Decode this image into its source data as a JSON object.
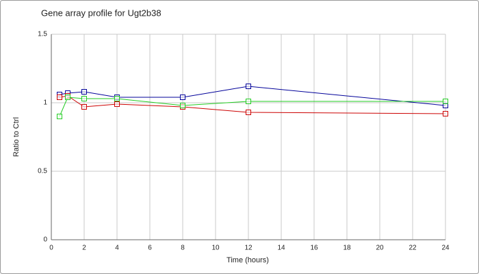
{
  "chart_data": {
    "type": "line",
    "title": "Gene array profile for Ugt2b38",
    "x_label": "Time (hours)",
    "y_label": "Ratio to Ctrl",
    "x": [
      0.5,
      1,
      2,
      4,
      8,
      12,
      24
    ],
    "series": [
      {
        "color": "#000099",
        "values": [
          1.06,
          1.07,
          1.08,
          1.04,
          1.04,
          1.12,
          0.98
        ]
      },
      {
        "color": "#cc0000",
        "values": [
          1.04,
          1.05,
          0.97,
          0.99,
          0.97,
          0.93,
          0.92
        ]
      },
      {
        "color": "#22cc22",
        "values": [
          0.9,
          1.04,
          1.03,
          1.03,
          0.98,
          1.01,
          1.01
        ]
      }
    ],
    "xlim": [
      0,
      24
    ],
    "xticks": [
      0,
      2,
      4,
      6,
      8,
      10,
      12,
      14,
      16,
      18,
      20,
      22,
      24
    ],
    "ylim": [
      0,
      1.5
    ],
    "yticks": [
      0,
      0.5,
      1,
      1.5
    ],
    "grid": true
  }
}
